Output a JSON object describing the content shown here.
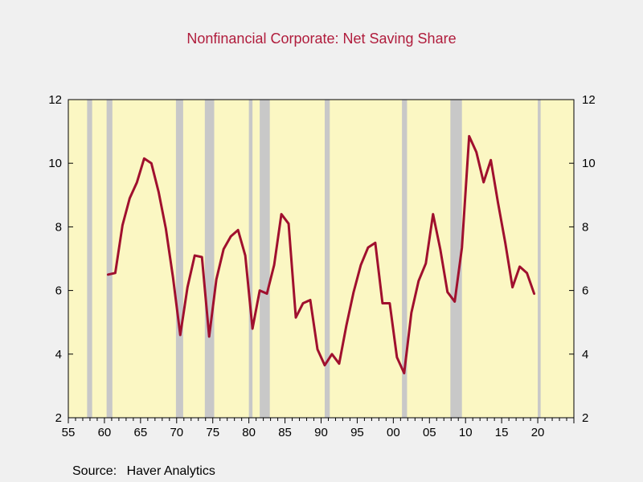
{
  "chart_data": {
    "type": "line",
    "title": "Nonfinancial Corporate: Net Saving Share",
    "xlabel": "",
    "ylabel": "",
    "xlim": [
      1955,
      2025
    ],
    "ylim": [
      2,
      12
    ],
    "y_ticks": [
      2,
      4,
      6,
      8,
      10,
      12
    ],
    "x_ticks": [
      {
        "value": 1955,
        "label": "55"
      },
      {
        "value": 1960,
        "label": "60"
      },
      {
        "value": 1965,
        "label": "65"
      },
      {
        "value": 1970,
        "label": "70"
      },
      {
        "value": 1975,
        "label": "75"
      },
      {
        "value": 1980,
        "label": "80"
      },
      {
        "value": 1985,
        "label": "85"
      },
      {
        "value": 1990,
        "label": "90"
      },
      {
        "value": 1995,
        "label": "95"
      },
      {
        "value": 2000,
        "label": "00"
      },
      {
        "value": 2005,
        "label": "05"
      },
      {
        "value": 2010,
        "label": "10"
      },
      {
        "value": 2015,
        "label": "15"
      },
      {
        "value": 2020,
        "label": "20"
      }
    ],
    "recessions": [
      [
        1957.6,
        1958.3
      ],
      [
        1960.3,
        1961.1
      ],
      [
        1969.9,
        1970.9
      ],
      [
        1973.9,
        1975.2
      ],
      [
        1980.0,
        1980.5
      ],
      [
        1981.5,
        1982.9
      ],
      [
        1990.5,
        1991.2
      ],
      [
        2001.2,
        2001.9
      ],
      [
        2007.9,
        2009.5
      ],
      [
        2020.0,
        2020.4
      ]
    ],
    "series": [
      {
        "color": "#a0102e",
        "x": [
          1960,
          1961,
          1962,
          1963,
          1964,
          1965,
          1966,
          1967,
          1968,
          1969,
          1970,
          1971,
          1972,
          1973,
          1974,
          1975,
          1976,
          1977,
          1978,
          1979,
          1980,
          1981,
          1982,
          1983,
          1984,
          1985,
          1986,
          1987,
          1988,
          1989,
          1990,
          1991,
          1992,
          1993,
          1994,
          1995,
          1996,
          1997,
          1998,
          1999,
          2000,
          2001,
          2002,
          2003,
          2004,
          2005,
          2006,
          2007,
          2008,
          2009,
          2010,
          2011,
          2012,
          2013,
          2014,
          2015,
          2016,
          2017,
          2018,
          2019
        ],
        "values": [
          6.5,
          6.55,
          8.05,
          8.9,
          9.4,
          10.15,
          10.0,
          9.1,
          7.95,
          6.4,
          4.6,
          6.1,
          7.1,
          7.05,
          4.55,
          6.35,
          7.3,
          7.7,
          7.9,
          7.1,
          4.8,
          6.0,
          5.9,
          6.8,
          8.4,
          8.1,
          5.15,
          5.6,
          5.7,
          4.15,
          3.65,
          4.0,
          3.7,
          4.9,
          5.95,
          6.8,
          7.35,
          7.5,
          5.6,
          5.6,
          3.9,
          3.4,
          5.3,
          6.3,
          6.85,
          8.4,
          7.3,
          5.95,
          5.65,
          7.35,
          10.85,
          10.35,
          9.4,
          10.1,
          8.75,
          7.5,
          6.1,
          6.75,
          6.55,
          5.9
        ]
      }
    ]
  },
  "source": {
    "label": "Source:",
    "text": "Haver Analytics"
  },
  "colors": {
    "plot_background": "#fbf7c3",
    "recession_band": "#c8c8c8",
    "title": "#b01c3c",
    "line": "#a0102e",
    "page_background": "#f0f0f0"
  }
}
